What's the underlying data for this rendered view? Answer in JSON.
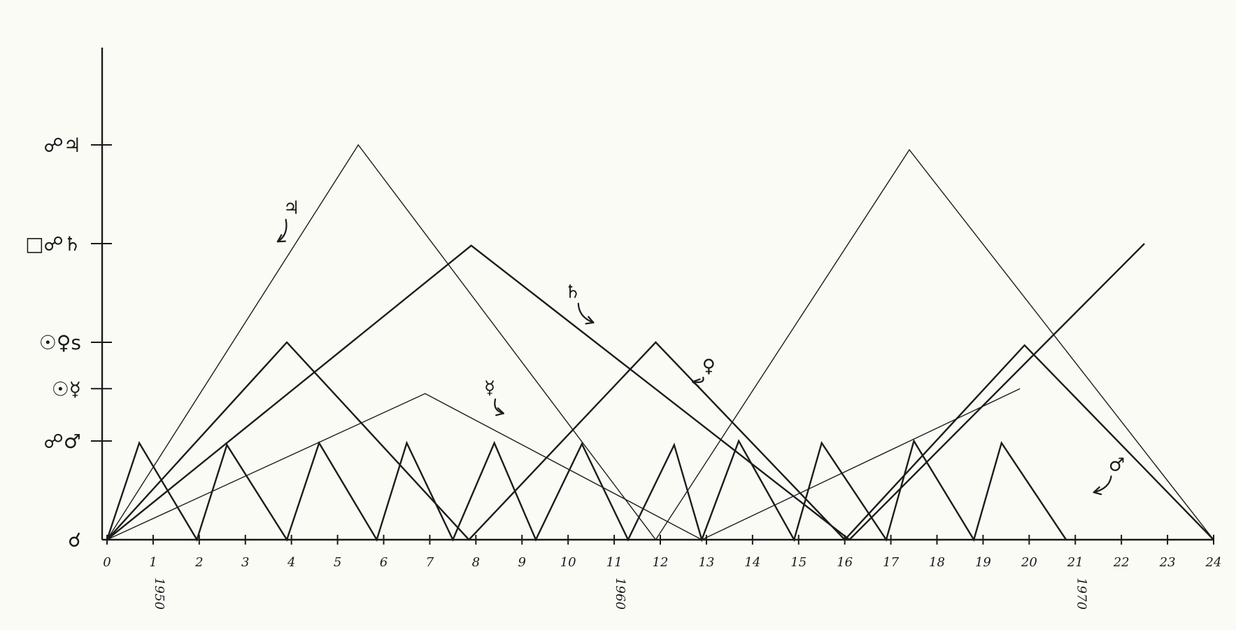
{
  "chart_data": {
    "type": "line",
    "title": "",
    "xlabel": "",
    "ylabel": "",
    "xlim": [
      0,
      24
    ],
    "x_ticks": [
      "0",
      "1",
      "2",
      "3",
      "4",
      "5",
      "6",
      "7",
      "8",
      "9",
      "10",
      "11",
      "12",
      "13",
      "14",
      "15",
      "16",
      "17",
      "18",
      "19",
      "20",
      "21",
      "22",
      "23",
      "24"
    ],
    "year_marks": [
      {
        "x": 1,
        "label": "1950"
      },
      {
        "x": 11,
        "label": "1960"
      },
      {
        "x": 21,
        "label": "1970"
      }
    ],
    "y_levels": [
      {
        "value": 0,
        "label": "☌"
      },
      {
        "value": 1,
        "label": "☍♂"
      },
      {
        "value": 1.53,
        "label": "☉☿"
      },
      {
        "value": 2.0,
        "label": "☉♀s"
      },
      {
        "value": 3.0,
        "label": "□☍♄"
      },
      {
        "value": 4.0,
        "label": "☍♃"
      }
    ],
    "grid": false,
    "series": [
      {
        "name": "♃",
        "style": "thin",
        "points": [
          [
            0,
            0
          ],
          [
            5.45,
            4.0
          ],
          [
            11.9,
            0
          ],
          [
            17.4,
            3.95
          ],
          [
            24,
            0
          ]
        ]
      },
      {
        "name": "♄",
        "style": "bold",
        "points": [
          [
            0,
            0
          ],
          [
            7.9,
            2.98
          ],
          [
            16.1,
            0
          ],
          [
            22.5,
            3.0
          ]
        ]
      },
      {
        "name": "♀",
        "style": "bold",
        "points": [
          [
            0,
            0
          ],
          [
            3.9,
            2.0
          ],
          [
            7.85,
            0
          ],
          [
            11.9,
            2.0
          ],
          [
            16,
            0
          ],
          [
            19.9,
            1.97
          ],
          [
            24,
            0
          ]
        ]
      },
      {
        "name": "☿",
        "style": "thin",
        "points": [
          [
            0,
            0
          ],
          [
            6.9,
            1.48
          ],
          [
            12.9,
            0
          ],
          [
            19.8,
            1.53
          ]
        ]
      },
      {
        "name": "♂",
        "style": "bold",
        "points": [
          [
            0,
            0
          ],
          [
            0.7,
            0.98
          ],
          [
            1.95,
            0
          ],
          [
            2.6,
            0.96
          ],
          [
            3.9,
            0
          ],
          [
            4.6,
            0.98
          ],
          [
            5.85,
            0
          ],
          [
            6.5,
            0.98
          ],
          [
            7.5,
            0
          ],
          [
            8.4,
            0.98
          ],
          [
            9.3,
            0
          ],
          [
            10.3,
            0.97
          ],
          [
            11.3,
            0
          ],
          [
            12.3,
            0.96
          ],
          [
            12.9,
            0
          ],
          [
            13.7,
            1.0
          ],
          [
            14.9,
            0
          ],
          [
            15.5,
            0.98
          ],
          [
            16.9,
            0
          ],
          [
            17.5,
            1.0
          ],
          [
            18.8,
            0
          ],
          [
            19.4,
            0.98
          ],
          [
            20.8,
            0
          ]
        ]
      }
    ]
  },
  "annotations": [
    {
      "label": "♃",
      "x": 4.0,
      "y": 3.3,
      "tx": 3.7,
      "ty": 3.02
    },
    {
      "label": "♄",
      "x": 10.1,
      "y": 2.45,
      "tx": 10.55,
      "ty": 2.2
    },
    {
      "label": "♀",
      "x": 13.05,
      "y": 1.7,
      "tx": 12.7,
      "ty": 1.6
    },
    {
      "label": "☿",
      "x": 8.3,
      "y": 1.48,
      "tx": 8.6,
      "ty": 1.28
    },
    {
      "label": "♂",
      "x": 21.9,
      "y": 0.7,
      "tx": 21.4,
      "ty": 0.48
    }
  ]
}
